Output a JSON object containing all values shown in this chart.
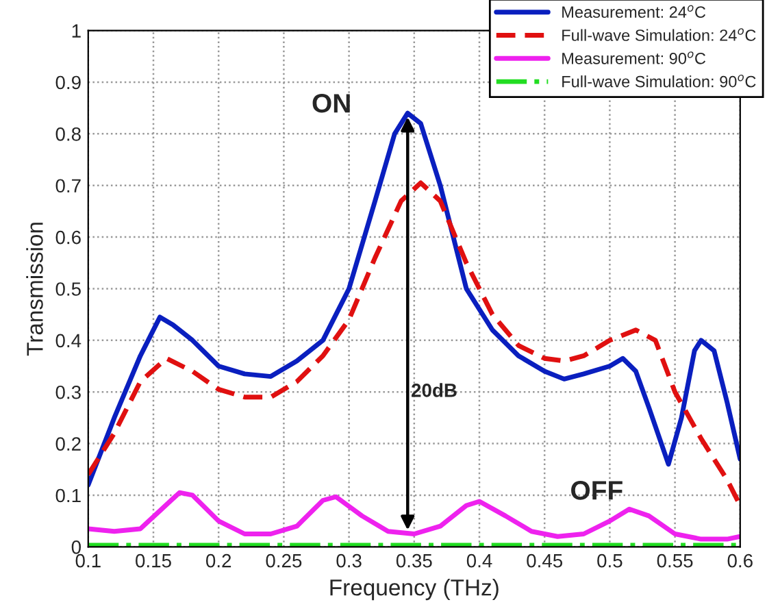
{
  "chart_data": {
    "type": "line",
    "xlabel": "Frequency (THz)",
    "ylabel": "Transmission",
    "xlim": [
      0.1,
      0.6
    ],
    "xticks": [
      0.1,
      0.15,
      0.2,
      0.25,
      0.3,
      0.35,
      0.4,
      0.45,
      0.5,
      0.55,
      0.6
    ],
    "ylim": [
      0,
      1
    ],
    "yticks": [
      0,
      0.1,
      0.2,
      0.3,
      0.4,
      0.5,
      0.6,
      0.7,
      0.8,
      0.9,
      1
    ],
    "grid": true,
    "legend": "top right",
    "annotations": [
      {
        "text": "ON",
        "x": 0.345,
        "y": 0.84
      },
      "OFF",
      "20dB"
    ],
    "series": [
      {
        "name": "Measurement: 24$^{o}$C",
        "color": "#0a1fbf",
        "line_style": "solid",
        "x": [
          0.1,
          0.12,
          0.14,
          0.155,
          0.165,
          0.18,
          0.2,
          0.22,
          0.24,
          0.26,
          0.28,
          0.3,
          0.32,
          0.335,
          0.345,
          0.355,
          0.37,
          0.39,
          0.41,
          0.43,
          0.45,
          0.465,
          0.48,
          0.5,
          0.51,
          0.52,
          0.53,
          0.545,
          0.555,
          0.565,
          0.57,
          0.58,
          0.59,
          0.6
        ],
        "values": [
          0.12,
          0.25,
          0.37,
          0.445,
          0.43,
          0.4,
          0.35,
          0.335,
          0.33,
          0.36,
          0.4,
          0.5,
          0.67,
          0.8,
          0.84,
          0.82,
          0.7,
          0.5,
          0.42,
          0.37,
          0.34,
          0.325,
          0.335,
          0.35,
          0.365,
          0.34,
          0.27,
          0.16,
          0.25,
          0.38,
          0.4,
          0.38,
          0.28,
          0.17
        ]
      },
      {
        "name": "Full-wave Simulation: 24$^{o}$C",
        "color": "#e01010",
        "line_style": "dashed",
        "x": [
          0.1,
          0.12,
          0.14,
          0.16,
          0.18,
          0.2,
          0.22,
          0.24,
          0.26,
          0.28,
          0.3,
          0.32,
          0.34,
          0.355,
          0.37,
          0.39,
          0.41,
          0.43,
          0.45,
          0.465,
          0.48,
          0.5,
          0.52,
          0.535,
          0.55,
          0.57,
          0.59,
          0.6
        ],
        "values": [
          0.14,
          0.22,
          0.32,
          0.365,
          0.34,
          0.305,
          0.29,
          0.29,
          0.32,
          0.37,
          0.44,
          0.56,
          0.67,
          0.705,
          0.67,
          0.55,
          0.45,
          0.39,
          0.365,
          0.36,
          0.37,
          0.4,
          0.42,
          0.4,
          0.3,
          0.21,
          0.13,
          0.08
        ]
      },
      {
        "name": "Measurement: 90$^{o}$C",
        "color": "#ee22ee",
        "line_style": "solid",
        "x": [
          0.1,
          0.12,
          0.14,
          0.155,
          0.17,
          0.18,
          0.2,
          0.22,
          0.24,
          0.26,
          0.28,
          0.29,
          0.31,
          0.33,
          0.35,
          0.37,
          0.39,
          0.4,
          0.42,
          0.44,
          0.46,
          0.48,
          0.5,
          0.515,
          0.53,
          0.55,
          0.57,
          0.59,
          0.6
        ],
        "values": [
          0.035,
          0.03,
          0.035,
          0.07,
          0.105,
          0.1,
          0.05,
          0.025,
          0.025,
          0.04,
          0.09,
          0.097,
          0.06,
          0.03,
          0.025,
          0.04,
          0.08,
          0.088,
          0.06,
          0.03,
          0.02,
          0.025,
          0.05,
          0.073,
          0.06,
          0.025,
          0.015,
          0.015,
          0.02
        ]
      },
      {
        "name": "Full-wave Simulation: 90$^{o}$C",
        "color": "#22dd22",
        "line_style": "dashdot",
        "x": [
          0.1,
          0.6
        ],
        "values": [
          0.003,
          0.003
        ]
      }
    ]
  }
}
